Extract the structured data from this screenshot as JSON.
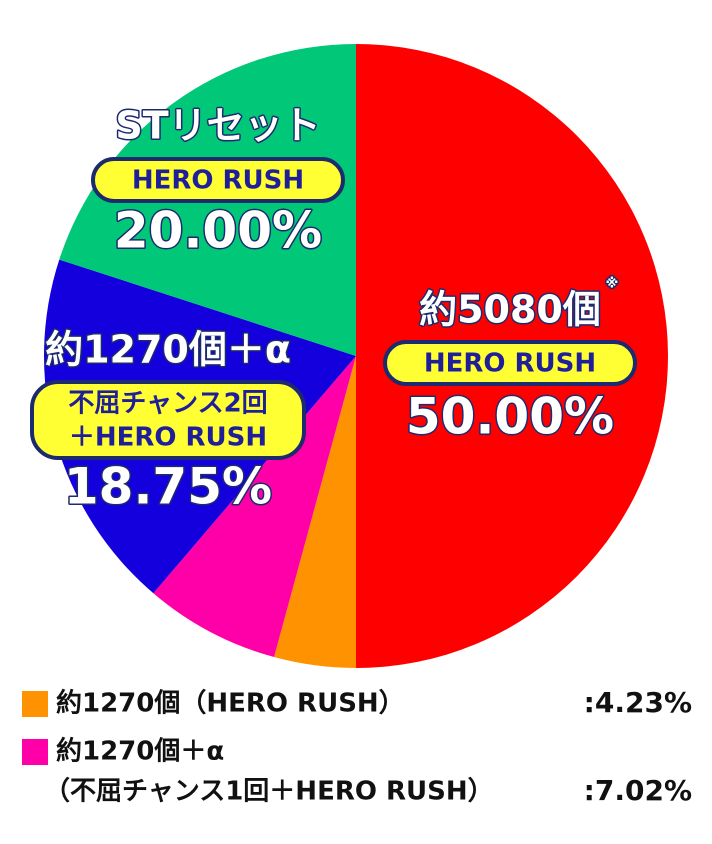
{
  "chart_data": {
    "type": "pie",
    "values": [
      50,
      4.23,
      7.02,
      18.75,
      20
    ],
    "value_labels": [
      "50.00%",
      "4.23%",
      "7.02%",
      "18.75%",
      "20.00%"
    ],
    "colors": [
      "#ff0000",
      "#ff9200",
      "#ff00a8",
      "#1400dc",
      "#00c878"
    ],
    "slice_labels": [
      {
        "title": "約5080個",
        "note": "※",
        "badge": [
          "HERO RUSH"
        ]
      },
      null,
      null,
      {
        "title": "約1270個＋α",
        "badge": [
          "不屈チャンス2回",
          "＋HERO RUSH"
        ]
      },
      {
        "title": "STリセット",
        "badge": [
          "HERO RUSH"
        ]
      }
    ],
    "legend": [
      {
        "slice": 1,
        "lines": [
          "約1270個（HERO RUSH）"
        ],
        "value_label": ":4.23%"
      },
      {
        "slice": 2,
        "lines": [
          "約1270個＋α",
          "（不屈チャンス1回＋HERO RUSH）"
        ],
        "value_label": ":7.02%"
      }
    ]
  }
}
